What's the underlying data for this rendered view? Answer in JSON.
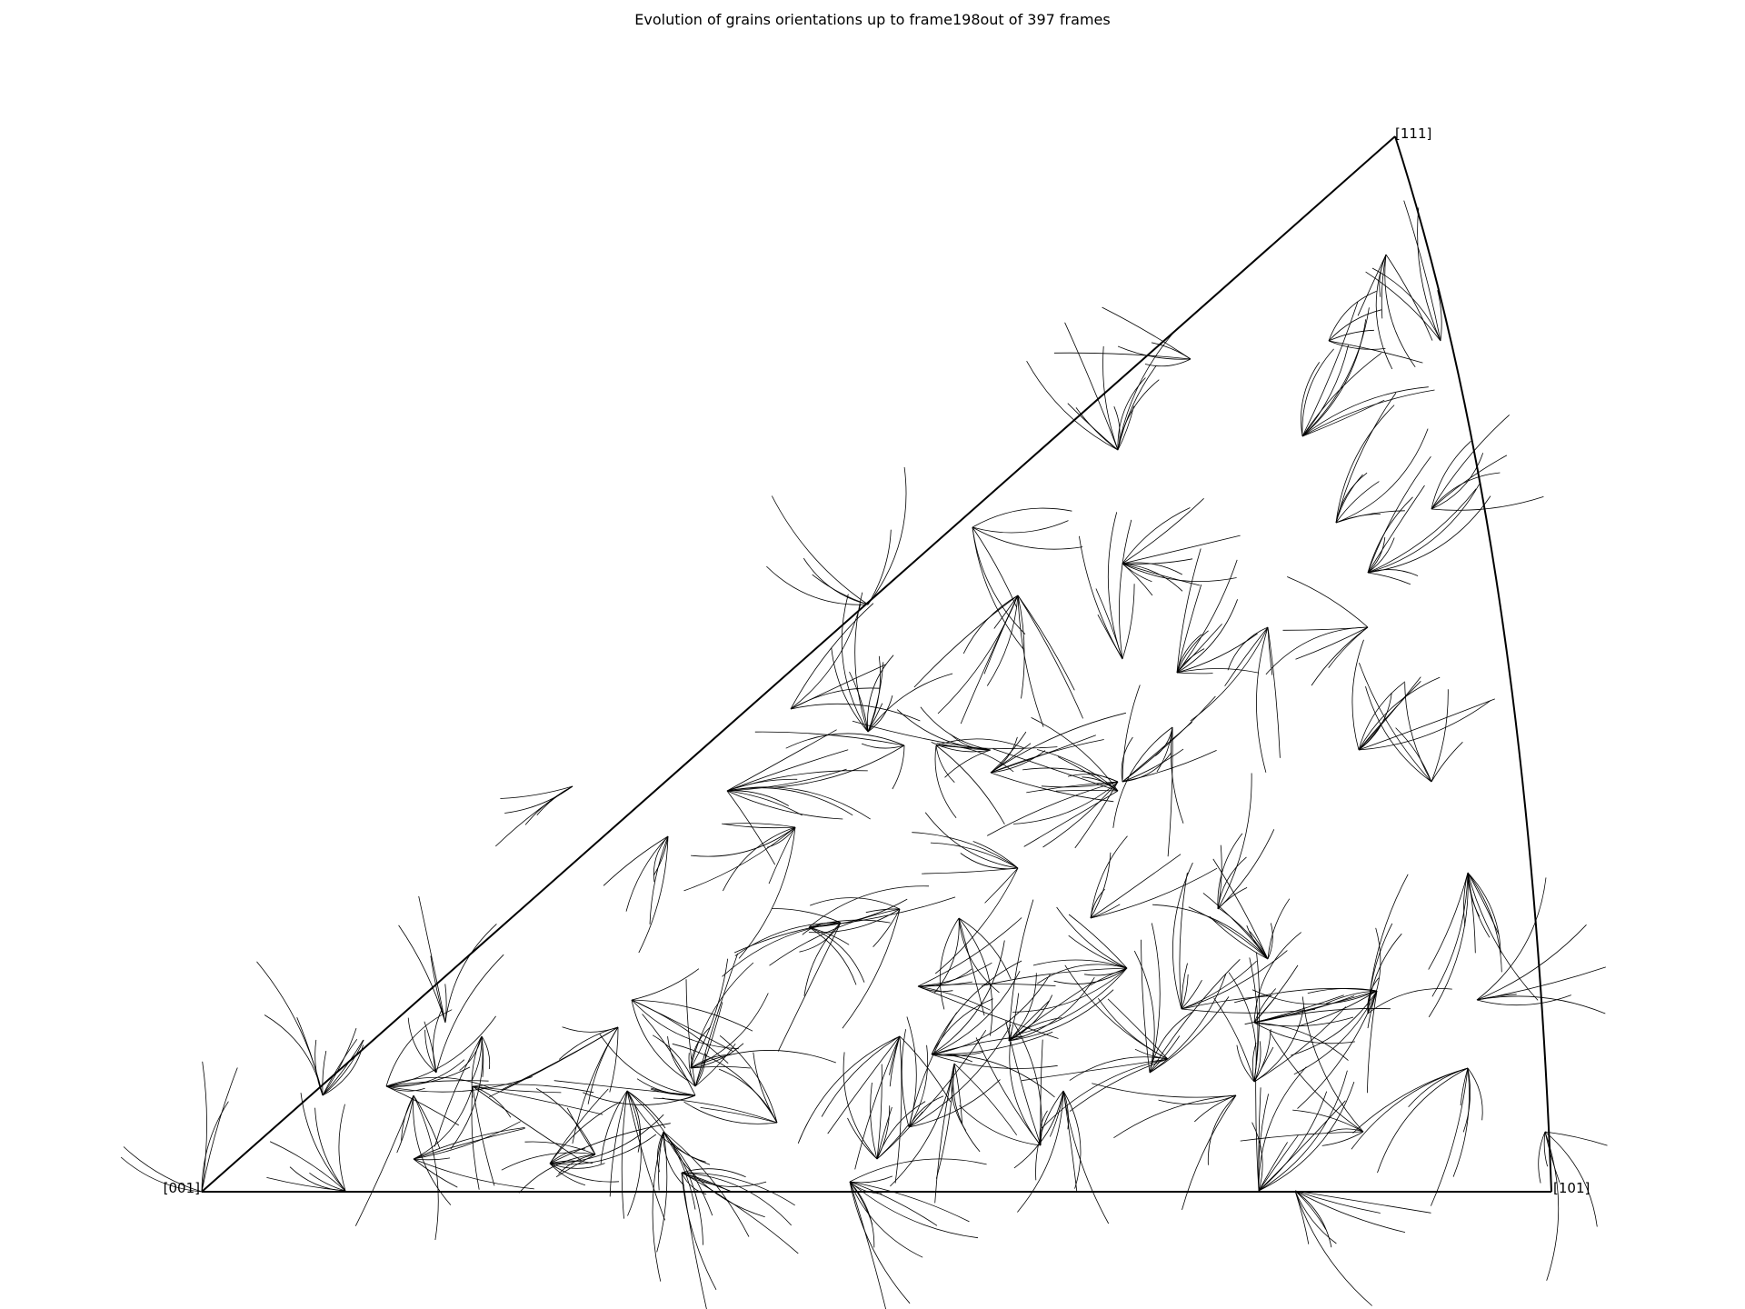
{
  "title": "Evolution of grains orientations up to frame198out of 397 frames",
  "vertices": {
    "v001": "[001]",
    "v101": "[101]",
    "v111": "[111]"
  },
  "colors": {
    "boundary": "#000000",
    "trajectory": "#000000",
    "background": "#ffffff"
  }
}
